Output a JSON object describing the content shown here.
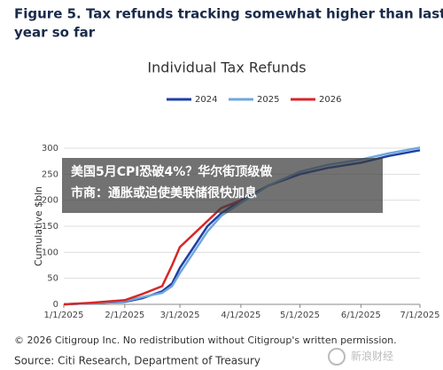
{
  "figure_title": [
    "Figure 5. Tax refunds tracking somewhat higher than last",
    "year so far"
  ],
  "chart_data": {
    "type": "line",
    "title": "Individual Tax Refunds",
    "y_label": "Cumulative $bln",
    "x": [
      "2025-01-01",
      "2025-01-15",
      "2025-02-01",
      "2025-02-10",
      "2025-02-20",
      "2025-02-25",
      "2025-03-01",
      "2025-03-08",
      "2025-03-15",
      "2025-03-22",
      "2025-04-01",
      "2025-04-15",
      "2025-05-01",
      "2025-05-15",
      "2025-06-01",
      "2025-06-15",
      "2025-07-01"
    ],
    "series": [
      {
        "name": "2024",
        "color": "#1f3fa6",
        "values": [
          0,
          2,
          5,
          12,
          25,
          40,
          70,
          110,
          150,
          175,
          200,
          228,
          250,
          262,
          272,
          285,
          296
        ]
      },
      {
        "name": "2025",
        "color": "#6fa8dc",
        "values": [
          0,
          2,
          6,
          14,
          22,
          35,
          60,
          100,
          140,
          170,
          195,
          228,
          255,
          268,
          278,
          290,
          301
        ]
      },
      {
        "name": "2026",
        "color": "#d62728",
        "values": [
          0,
          3,
          8,
          20,
          35,
          75,
          110,
          135,
          160,
          185,
          200,
          null,
          null,
          null,
          null,
          null,
          null
        ]
      }
    ],
    "xlim": [
      "2025-01-01",
      "2025-07-01"
    ],
    "xticks": [
      {
        "value": "2025-01-01",
        "label": "1/1/2025"
      },
      {
        "value": "2025-02-01",
        "label": "2/1/2025"
      },
      {
        "value": "2025-03-01",
        "label": "3/1/2025"
      },
      {
        "value": "2025-04-01",
        "label": "4/1/2025"
      },
      {
        "value": "2025-05-01",
        "label": "5/1/2025"
      },
      {
        "value": "2025-06-01",
        "label": "6/1/2025"
      },
      {
        "value": "2025-07-01",
        "label": "7/1/2025"
      }
    ],
    "ylim": [
      0,
      300
    ],
    "yticks": [
      0,
      50,
      100,
      150,
      200,
      250,
      300
    ],
    "grid": true,
    "legend": "top"
  },
  "banner": [
    "美国5月CPI恐破4%？华尔街顶级做",
    "市商：通胀或迫使美联储很快加息"
  ],
  "footer": [
    "© 2026 Citigroup Inc. No redistribution without Citigroup's written permission.",
    "Source: Citi Research, Department of Treasury"
  ],
  "watermark": "新浪财经"
}
